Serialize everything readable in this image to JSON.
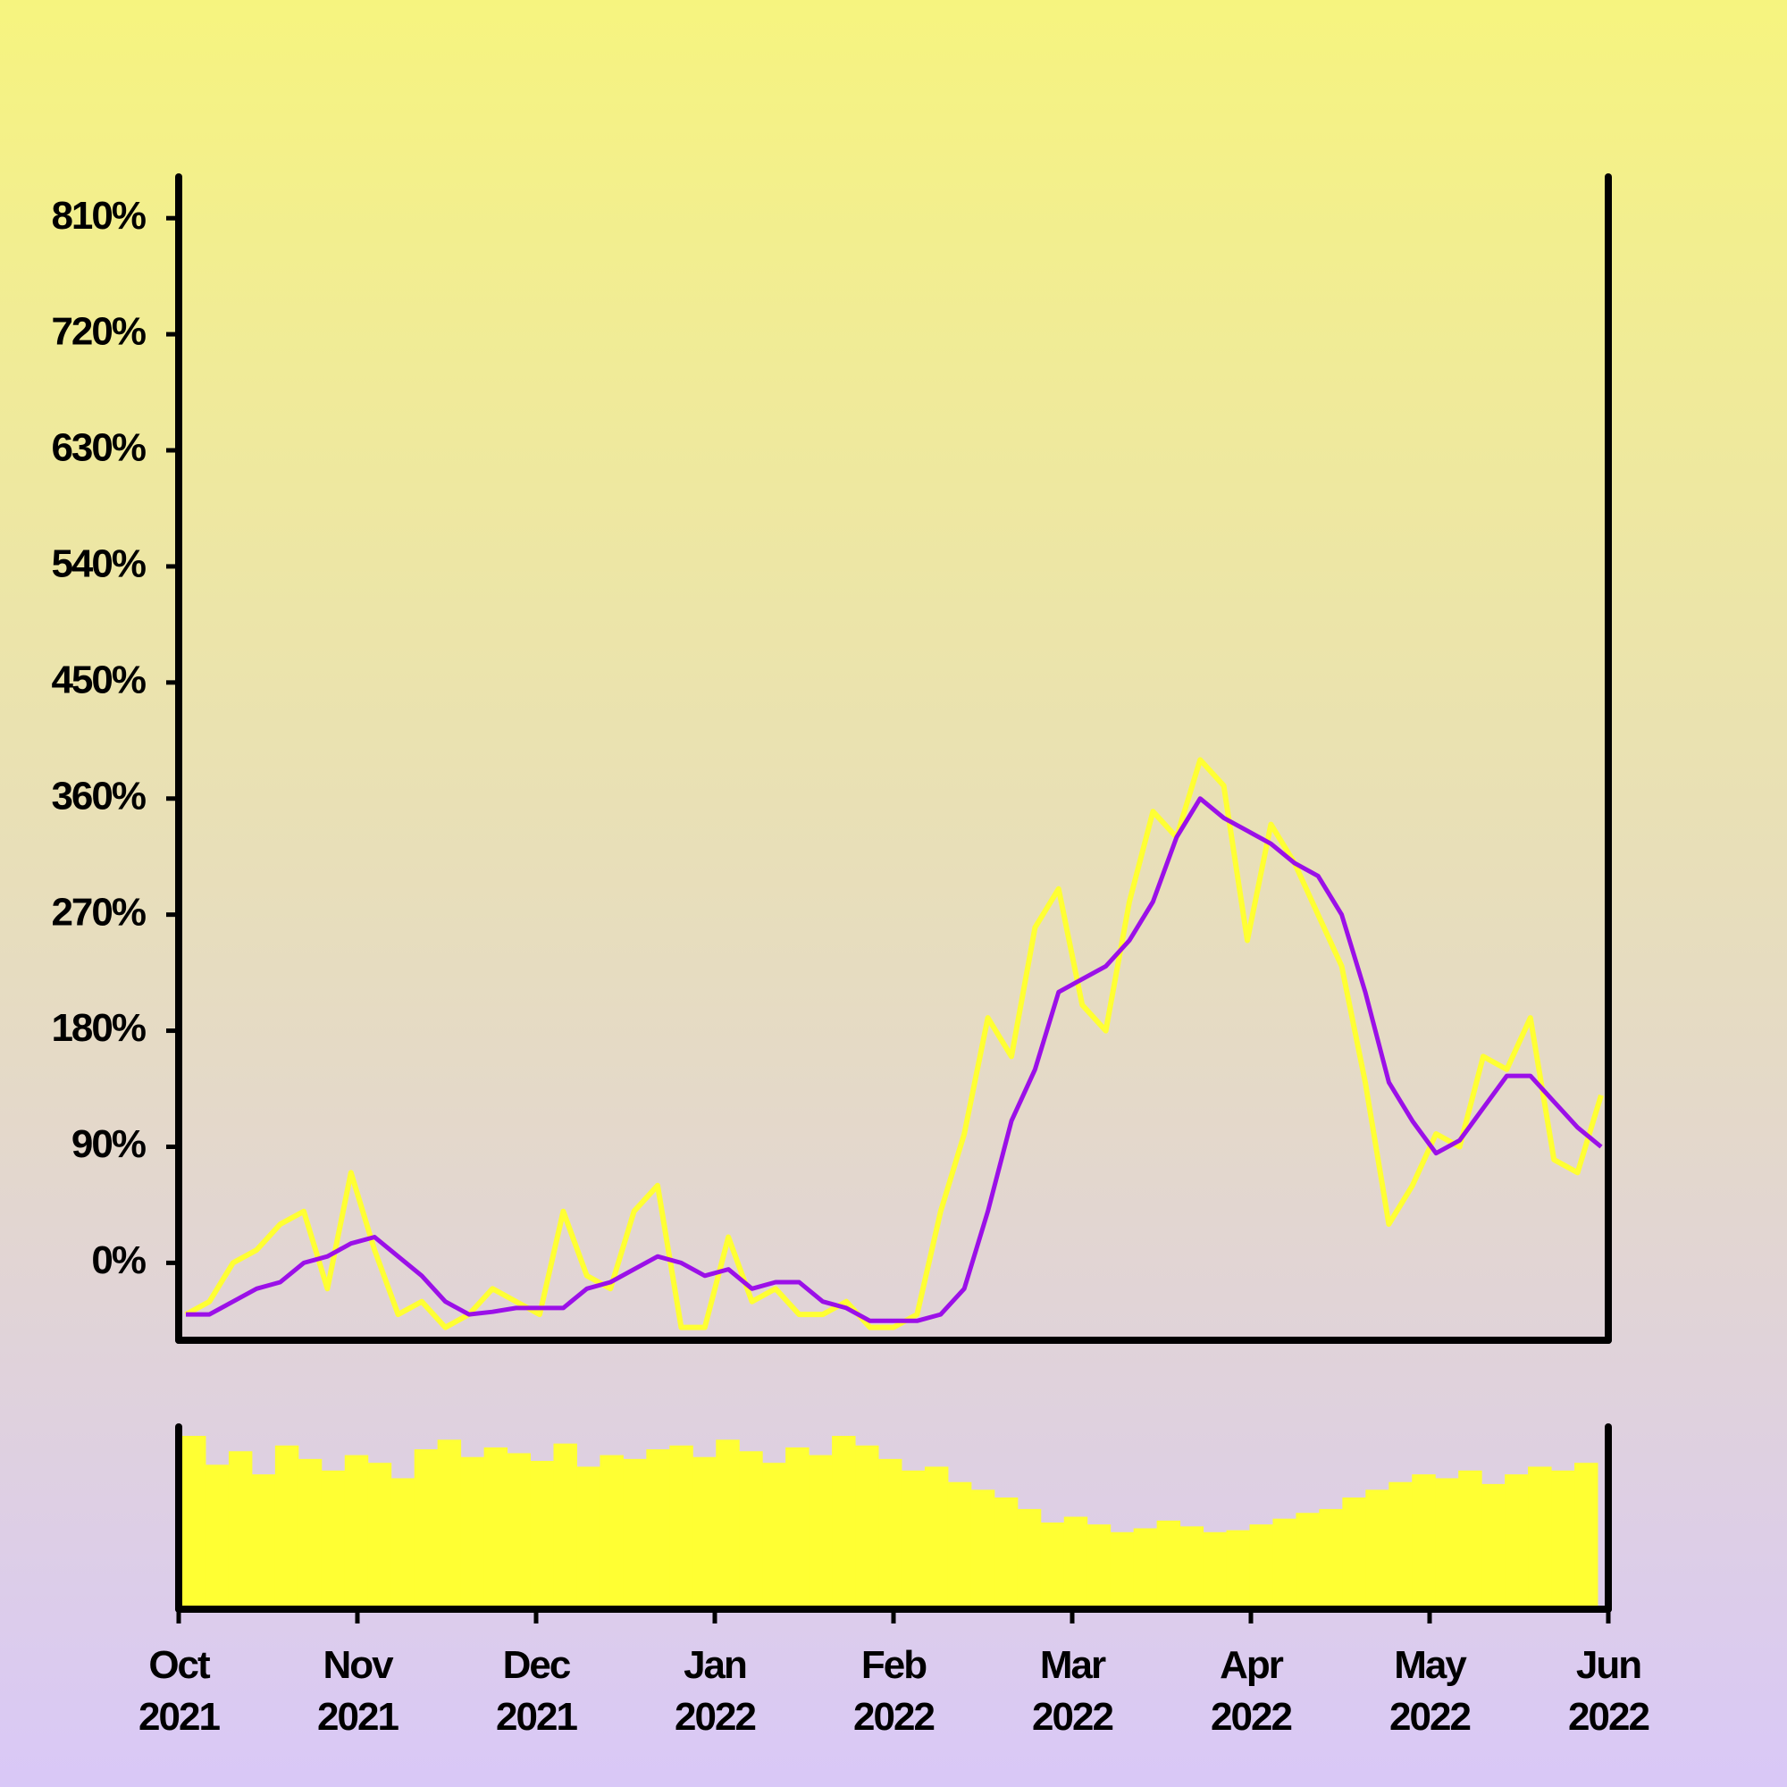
{
  "chart_data": {
    "type": "line",
    "xticks": [
      "Oct 2021",
      "Nov 2021",
      "Dec 2021",
      "Jan 2022",
      "Feb 2022",
      "Mar 2022",
      "Apr 2022",
      "May 2022",
      "Jun 2022"
    ],
    "ylim": [
      -60,
      842
    ],
    "yticks": [
      {
        "value": 0,
        "label": "0%"
      },
      {
        "value": 90,
        "label": "90%"
      },
      {
        "value": 180,
        "label": "180%"
      },
      {
        "value": 270,
        "label": "270%"
      },
      {
        "value": 360,
        "label": "360%"
      },
      {
        "value": 450,
        "label": "450%"
      },
      {
        "value": 540,
        "label": "540%"
      },
      {
        "value": 630,
        "label": "630%"
      },
      {
        "value": 720,
        "label": "720%"
      },
      {
        "value": 810,
        "label": "810%"
      }
    ],
    "series": [
      {
        "color": "#ffff33",
        "values": [
          -40,
          -30,
          0,
          10,
          30,
          40,
          -20,
          70,
          10,
          -40,
          -30,
          -50,
          -40,
          -20,
          -30,
          -40,
          40,
          -10,
          -20,
          40,
          60,
          -50,
          -50,
          20,
          -30,
          -20,
          -40,
          -40,
          -30,
          -50,
          -50,
          -40,
          40,
          100,
          190,
          160,
          260,
          290,
          200,
          180,
          280,
          350,
          330,
          390,
          370,
          250,
          340,
          310,
          270,
          230,
          140,
          30,
          60,
          100,
          90,
          160,
          150,
          190,
          80,
          70,
          130
        ]
      },
      {
        "color": "#9b10e8",
        "values": [
          -40,
          -40,
          -30,
          -20,
          -15,
          0,
          5,
          15,
          20,
          5,
          -10,
          -30,
          -40,
          -38,
          -35,
          -35,
          -35,
          -20,
          -15,
          -5,
          5,
          0,
          -10,
          -5,
          -20,
          -15,
          -15,
          -30,
          -35,
          -45,
          -45,
          -45,
          -40,
          -20,
          40,
          110,
          150,
          210,
          220,
          230,
          250,
          280,
          330,
          360,
          345,
          335,
          325,
          310,
          300,
          270,
          210,
          140,
          110,
          85,
          95,
          120,
          145,
          145,
          125,
          105,
          90
        ]
      }
    ],
    "volume": {
      "color": "#ffff33",
      "values": [
        90,
        75,
        82,
        70,
        85,
        78,
        72,
        80,
        76,
        68,
        83,
        88,
        79,
        84,
        81,
        77,
        86,
        74,
        80,
        78,
        83,
        85,
        79,
        88,
        82,
        76,
        84,
        80,
        90,
        85,
        78,
        72,
        74,
        66,
        62,
        58,
        52,
        45,
        48,
        44,
        40,
        42,
        46,
        43,
        40,
        41,
        44,
        47,
        50,
        52,
        58,
        62,
        66,
        70,
        68,
        72,
        65,
        70,
        74,
        72,
        76
      ]
    }
  }
}
